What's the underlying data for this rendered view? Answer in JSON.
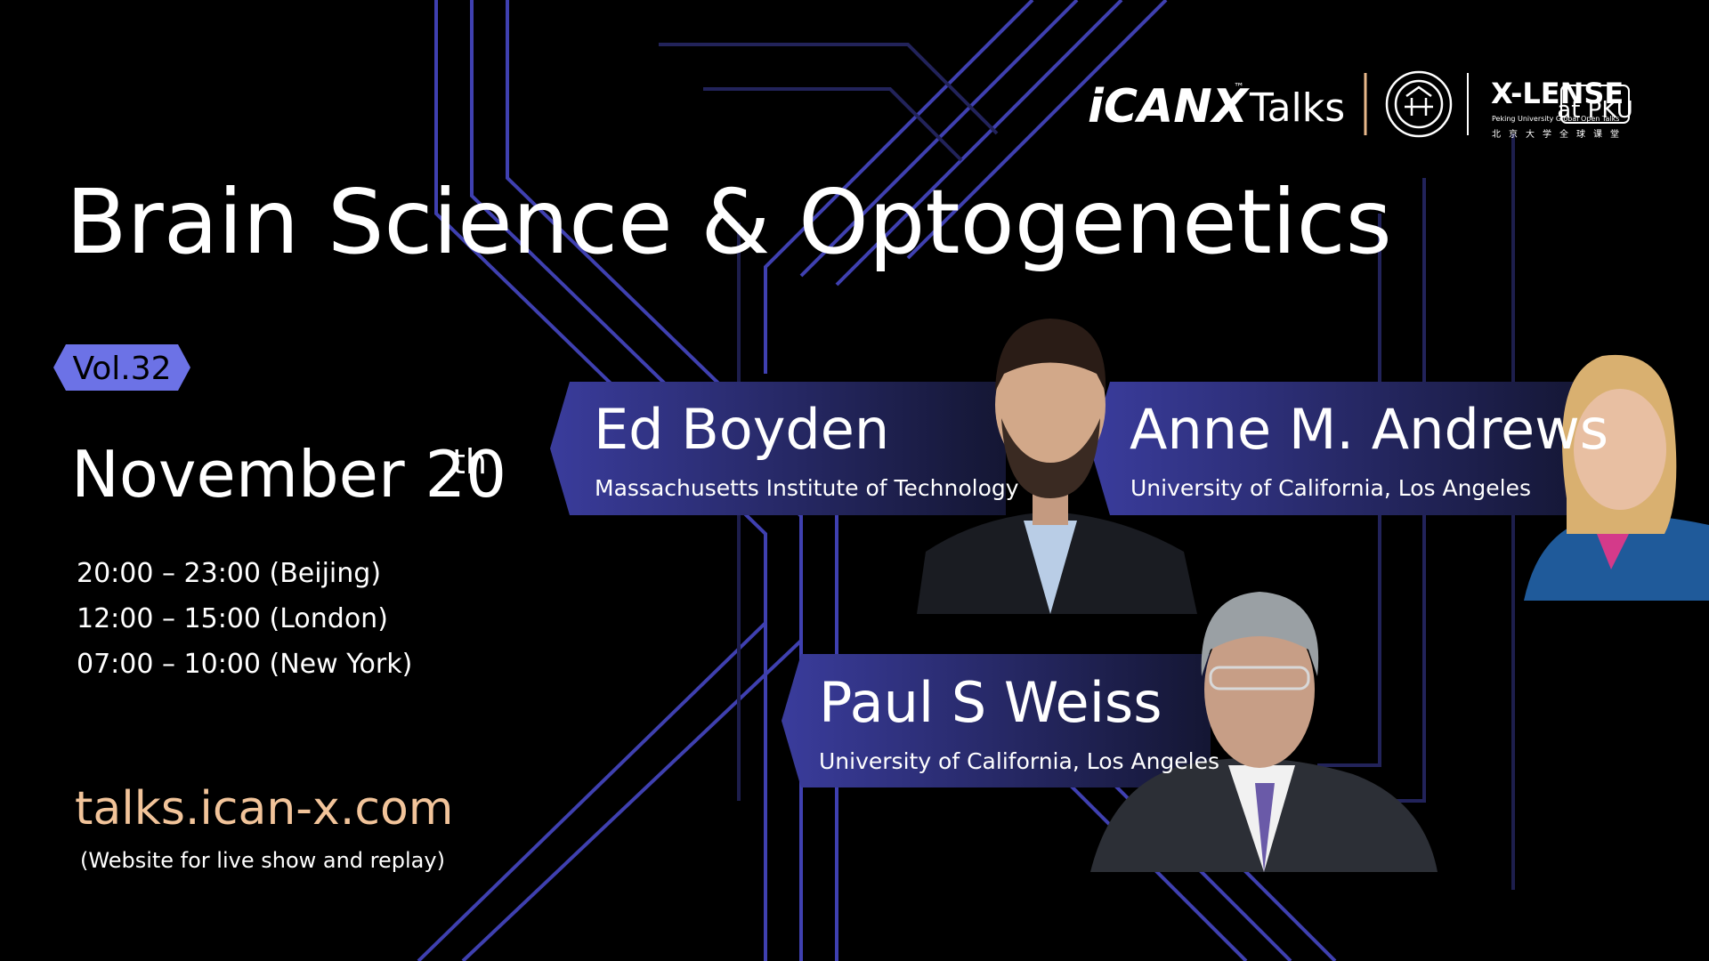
{
  "header": {
    "brand": "iCANX",
    "trademark": "™",
    "series": "Talks",
    "partner": "X-LENSE",
    "partner_sub": "at PKU",
    "partner_caption": "Peking University Global Open Talks",
    "partner_caption_cn": "北京大学全球课堂"
  },
  "title": "Brain Science & Optogenetics",
  "volume": "Vol.32",
  "date": {
    "text": "November 20",
    "suffix": "th"
  },
  "times": [
    "20:00 – 23:00 (Beijing)",
    "12:00 – 15:00 (London)",
    "07:00 – 10:00 (New York)"
  ],
  "website": {
    "url": "talks.ican-x.com",
    "note": "(Website for live show and replay)"
  },
  "speakers": [
    {
      "name": "Ed Boyden",
      "affiliation": "Massachusetts Institute of Technology"
    },
    {
      "name": "Anne M. Andrews",
      "affiliation": "University of California, Los Angeles"
    },
    {
      "name": "Paul S Weiss",
      "affiliation": "University of California, Los Angeles"
    }
  ]
}
